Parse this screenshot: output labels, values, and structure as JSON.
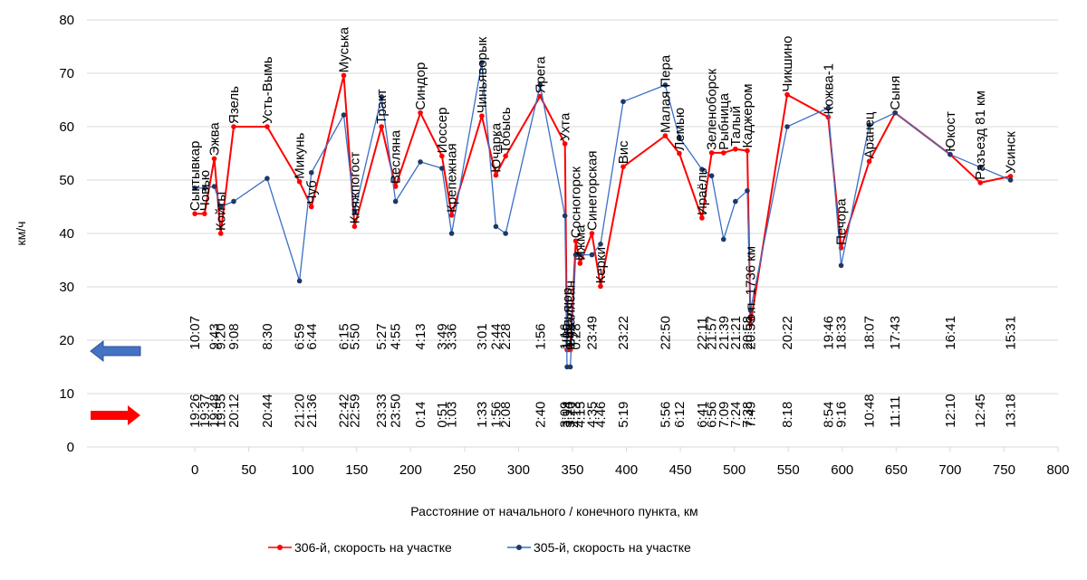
{
  "chart_data": {
    "type": "line",
    "xlabel": "Расстояние от начального / конечного пункта, км",
    "ylabel": "км/ч",
    "xlim": [
      -100,
      800
    ],
    "ylim": [
      0,
      80
    ],
    "xticks": [
      0,
      50,
      100,
      150,
      200,
      250,
      300,
      350,
      400,
      450,
      500,
      550,
      600,
      650,
      700,
      750,
      800
    ],
    "yticks": [
      0,
      10,
      20,
      30,
      40,
      50,
      60,
      70,
      80
    ],
    "grid": "horizontal",
    "legend_position": "bottom",
    "colors": {
      "train_306": "#ff0000",
      "train_305": "#3a6fc4",
      "marker_305": "#1f3864"
    },
    "series": [
      {
        "name": "306-й, скорость на участке",
        "points": [
          [
            0,
            43.7
          ],
          [
            9,
            43.7
          ],
          [
            18,
            54
          ],
          [
            24,
            40
          ],
          [
            36,
            60
          ],
          [
            67,
            60
          ],
          [
            97,
            49.7
          ],
          [
            108,
            45
          ],
          [
            138,
            69.6
          ],
          [
            148,
            41.3
          ],
          [
            173,
            60
          ],
          [
            186,
            48.8
          ],
          [
            209,
            62.6
          ],
          [
            229,
            54.5
          ],
          [
            238,
            43.4
          ],
          [
            266,
            62
          ],
          [
            279,
            50.9
          ],
          [
            288,
            54.5
          ],
          [
            320,
            65.7
          ],
          [
            343,
            56.8
          ],
          [
            345,
            18.2
          ],
          [
            348,
            18.2
          ],
          [
            353,
            38.6
          ],
          [
            357,
            34.4
          ],
          [
            368,
            40
          ],
          [
            376,
            30.1
          ],
          [
            397,
            52.5
          ],
          [
            436,
            58.3
          ],
          [
            449,
            55
          ],
          [
            470,
            42.9
          ],
          [
            479,
            55.1
          ],
          [
            490,
            55.1
          ],
          [
            501,
            55.8
          ],
          [
            512,
            55.5
          ],
          [
            515,
            23
          ],
          [
            549,
            66
          ],
          [
            587,
            61.8
          ],
          [
            599,
            37.3
          ],
          [
            625,
            53.5
          ],
          [
            649,
            62.6
          ],
          [
            700,
            54.8
          ],
          [
            728,
            49.5
          ],
          [
            756,
            50.7
          ]
        ]
      },
      {
        "name": "305-й, скорость на участке",
        "points": [
          [
            0,
            48.5
          ],
          [
            9,
            48.5
          ],
          [
            18,
            48.8
          ],
          [
            24,
            45
          ],
          [
            36,
            46
          ],
          [
            67,
            50.3
          ],
          [
            97,
            31.1
          ],
          [
            108,
            51.4
          ],
          [
            138,
            62.2
          ],
          [
            148,
            44
          ],
          [
            173,
            65.6
          ],
          [
            186,
            46
          ],
          [
            209,
            53.4
          ],
          [
            229,
            52.2
          ],
          [
            238,
            40
          ],
          [
            266,
            72
          ],
          [
            279,
            41.3
          ],
          [
            288,
            40
          ],
          [
            320,
            67.8
          ],
          [
            343,
            43.3
          ],
          [
            345,
            15
          ],
          [
            348,
            15
          ],
          [
            353,
            36
          ],
          [
            357,
            36
          ],
          [
            368,
            36
          ],
          [
            376,
            38
          ],
          [
            397,
            64.7
          ],
          [
            436,
            67.8
          ],
          [
            449,
            58
          ],
          [
            470,
            52
          ],
          [
            479,
            50.8
          ],
          [
            490,
            38.9
          ],
          [
            501,
            46
          ],
          [
            512,
            48
          ],
          [
            515,
            25.6
          ],
          [
            549,
            60
          ],
          [
            587,
            63.5
          ],
          [
            599,
            34
          ],
          [
            625,
            60.3
          ],
          [
            649,
            62.6
          ],
          [
            700,
            54.8
          ],
          [
            728,
            52.4
          ],
          [
            756,
            50
          ]
        ]
      }
    ],
    "stations": [
      {
        "name": "Сыктывкар",
        "x": 0,
        "y": 43.7,
        "t1": "19:26",
        "t2": "10:07"
      },
      {
        "name": "Човью",
        "x": 9,
        "y": 43.7,
        "t1": "19:37",
        "t2": ""
      },
      {
        "name": "Эжва",
        "x": 18,
        "y": 54,
        "t1": "19:48",
        "t2": "9:43"
      },
      {
        "name": "Койты",
        "x": 24,
        "y": 40,
        "t1": "19:55",
        "t2": "9:20"
      },
      {
        "name": "Язель",
        "x": 36,
        "y": 60,
        "t1": "20:12",
        "t2": "9:08"
      },
      {
        "name": "Усть-Вымь",
        "x": 67,
        "y": 60,
        "t1": "20:44",
        "t2": "8:30"
      },
      {
        "name": "Микунь",
        "x": 97,
        "y": 49.7,
        "t1": "21:20",
        "t2": "6:59"
      },
      {
        "name": "Чуб",
        "x": 108,
        "y": 45,
        "t1": "21:36",
        "t2": "6:44"
      },
      {
        "name": "Муська",
        "x": 138,
        "y": 69.6,
        "t1": "22:42",
        "t2": "6:15"
      },
      {
        "name": "Княжпогост",
        "x": 148,
        "y": 41.3,
        "t1": "22:59",
        "t2": "5:50"
      },
      {
        "name": "Тракт",
        "x": 173,
        "y": 60,
        "t1": "23:33",
        "t2": "5:27"
      },
      {
        "name": "Весляна",
        "x": 186,
        "y": 48.8,
        "t1": "23:50",
        "t2": "4:55"
      },
      {
        "name": "Синдор",
        "x": 209,
        "y": 62.6,
        "t1": "0:14",
        "t2": "4:13"
      },
      {
        "name": "Иоссер",
        "x": 229,
        "y": 54.5,
        "t1": "0:51",
        "t2": "3:49"
      },
      {
        "name": "Крепежная",
        "x": 238,
        "y": 43.4,
        "t1": "1:03",
        "t2": "3:36"
      },
      {
        "name": "Чиньяворык",
        "x": 266,
        "y": 62,
        "t1": "1:33",
        "t2": "3:01"
      },
      {
        "name": "Ючарка",
        "x": 279,
        "y": 50.9,
        "t1": "1:56",
        "t2": "2:44"
      },
      {
        "name": "Тобысь",
        "x": 288,
        "y": 54.5,
        "t1": "2:08",
        "t2": "2:28"
      },
      {
        "name": "Ярега",
        "x": 320,
        "y": 65.7,
        "t1": "2:40",
        "t2": "1:56"
      },
      {
        "name": "Ухта",
        "x": 343,
        "y": 56.8,
        "t1": "3:09",
        "t2": "1:16"
      },
      {
        "name": "Шельяюр",
        "x": 345,
        "y": 18.2,
        "t1": "3:14",
        "t2": "1:05"
      },
      {
        "name": "Бухалясан",
        "x": 348,
        "y": 18.2,
        "t1": "3:20",
        "t2": "0:45"
      },
      {
        "name": "Сосногорск",
        "x": 353,
        "y": 38.6,
        "t1": "4:13",
        "t2": "0:28"
      },
      {
        "name": "Ижма",
        "x": 357,
        "y": 34.4,
        "t1": "4:15",
        "t2": ""
      },
      {
        "name": "Синегорская",
        "x": 368,
        "y": 40,
        "t1": "4:35",
        "t2": "23:49"
      },
      {
        "name": "Керки",
        "x": 376,
        "y": 30.1,
        "t1": "4:46",
        "t2": ""
      },
      {
        "name": "Вис",
        "x": 397,
        "y": 52.5,
        "t1": "5:19",
        "t2": "23:22"
      },
      {
        "name": "Малая Пера",
        "x": 436,
        "y": 58.3,
        "t1": "5:56",
        "t2": "22:50"
      },
      {
        "name": "Лемью",
        "x": 449,
        "y": 55,
        "t1": "6:12",
        "t2": ""
      },
      {
        "name": "Ираёль",
        "x": 470,
        "y": 42.9,
        "t1": "6:41",
        "t2": "22:11"
      },
      {
        "name": "Зеленоборск",
        "x": 479,
        "y": 55.1,
        "t1": "6:56",
        "t2": "21:57"
      },
      {
        "name": "Рыбница",
        "x": 490,
        "y": 55.1,
        "t1": "7:09",
        "t2": "21:39"
      },
      {
        "name": "Талый",
        "x": 501,
        "y": 55.8,
        "t1": "7:24",
        "t2": "21:21"
      },
      {
        "name": "Каджером",
        "x": 512,
        "y": 55.5,
        "t1": "7:38",
        "t2": "20:58"
      },
      {
        "name": "о.п. 1736 км",
        "x": 515,
        "y": 23,
        "t1": "7:49",
        "t2": "20:53"
      },
      {
        "name": "Чикшино",
        "x": 549,
        "y": 66,
        "t1": "8:18",
        "t2": "20:22"
      },
      {
        "name": "Кожва-1",
        "x": 587,
        "y": 61.8,
        "t1": "8:54",
        "t2": "19:46"
      },
      {
        "name": "Печора",
        "x": 599,
        "y": 37.3,
        "t1": "9:16",
        "t2": "18:33"
      },
      {
        "name": "Аранец",
        "x": 625,
        "y": 53.5,
        "t1": "10:48",
        "t2": "18:07"
      },
      {
        "name": "Сыня",
        "x": 649,
        "y": 62.6,
        "t1": "11:11",
        "t2": "17:43"
      },
      {
        "name": "Юкост",
        "x": 700,
        "y": 54.8,
        "t1": "12:10",
        "t2": "16:41"
      },
      {
        "name": "Разъезд 81 км",
        "x": 728,
        "y": 49.5,
        "t1": "12:45",
        "t2": ""
      },
      {
        "name": "Усинск",
        "x": 756,
        "y": 50.7,
        "t1": "13:18",
        "t2": "15:31"
      }
    ]
  },
  "legend": {
    "items": [
      {
        "label": "306-й, скорость на участке",
        "color": "#ff0000"
      },
      {
        "label": "305-й, скорость на участке",
        "color": "#3a6fc4"
      }
    ]
  },
  "arrows": {
    "back": {
      "direction": "left",
      "color": "#4472c4"
    },
    "forward": {
      "direction": "right",
      "color": "#ff0000"
    }
  }
}
